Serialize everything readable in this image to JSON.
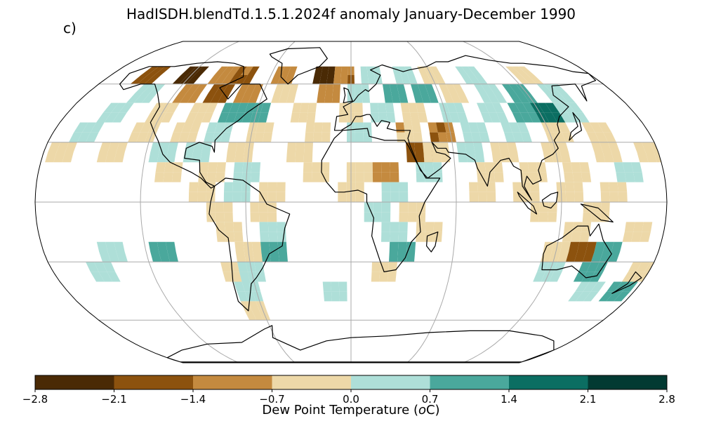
{
  "title": "HadISDH.blendTd.1.5.1.2024f anomaly January-December 1990",
  "panel_label": "c)",
  "colorbar": {
    "label": "Dew Point Temperature (",
    "label_unit_o": "o",
    "label_unit_rest": "C)",
    "ticks": [
      "−2.8",
      "−2.1",
      "−1.4",
      "−0.7",
      "0.0",
      "0.7",
      "1.4",
      "2.1",
      "2.8"
    ],
    "tick_values": [
      -2.8,
      -2.1,
      -1.4,
      -0.7,
      0.0,
      0.7,
      1.4,
      2.1,
      2.8
    ],
    "colors": [
      "#4a2a05",
      "#8c520e",
      "#c48a3f",
      "#edd8a8",
      "#aedfd8",
      "#4aa89c",
      "#0b6e62",
      "#023a32"
    ]
  },
  "chart_data": {
    "type": "heatmap",
    "projection": "Robinson",
    "grid_degrees": 5,
    "value_range": [
      -2.8,
      2.8
    ],
    "cells": [
      {
        "lon": -150,
        "lat": 67.5,
        "v": -1.6
      },
      {
        "lon": -120,
        "lat": 67.5,
        "v": -2.4
      },
      {
        "lon": -95,
        "lat": 67.5,
        "v": -1.2
      },
      {
        "lon": -80,
        "lat": 67.5,
        "v": -1.5
      },
      {
        "lon": -50,
        "lat": 67.5,
        "v": -1.0
      },
      {
        "lon": -20,
        "lat": 67.5,
        "v": -2.2
      },
      {
        "lon": -5,
        "lat": 67.5,
        "v": -1.3
      },
      {
        "lon": 15,
        "lat": 67.5,
        "v": 0.4
      },
      {
        "lon": 40,
        "lat": 67.5,
        "v": 0.3
      },
      {
        "lon": 60,
        "lat": 67.5,
        "v": -0.4
      },
      {
        "lon": 90,
        "lat": 67.5,
        "v": 0.4
      },
      {
        "lon": 130,
        "lat": 67.5,
        "v": -0.3
      },
      {
        "lon": -140,
        "lat": 57.5,
        "v": 0.3
      },
      {
        "lon": -110,
        "lat": 57.5,
        "v": -1.0
      },
      {
        "lon": -90,
        "lat": 57.5,
        "v": -1.8
      },
      {
        "lon": -70,
        "lat": 57.5,
        "v": -1.1
      },
      {
        "lon": -45,
        "lat": 57.5,
        "v": -0.5
      },
      {
        "lon": -15,
        "lat": 57.5,
        "v": -1.0
      },
      {
        "lon": 5,
        "lat": 57.5,
        "v": 0.4
      },
      {
        "lon": 30,
        "lat": 57.5,
        "v": 0.9
      },
      {
        "lon": 50,
        "lat": 57.5,
        "v": 1.0
      },
      {
        "lon": 70,
        "lat": 57.5,
        "v": -0.3
      },
      {
        "lon": 95,
        "lat": 57.5,
        "v": 0.4
      },
      {
        "lon": 115,
        "lat": 57.5,
        "v": 0.8
      },
      {
        "lon": 140,
        "lat": 57.5,
        "v": 0.4
      },
      {
        "lon": -150,
        "lat": 47.5,
        "v": 0.3
      },
      {
        "lon": -120,
        "lat": 47.5,
        "v": -0.4
      },
      {
        "lon": -95,
        "lat": 47.5,
        "v": -0.5
      },
      {
        "lon": -75,
        "lat": 47.5,
        "v": 0.9
      },
      {
        "lon": -60,
        "lat": 47.5,
        "v": 1.2
      },
      {
        "lon": -30,
        "lat": 47.5,
        "v": -0.3
      },
      {
        "lon": 0,
        "lat": 47.5,
        "v": -0.4
      },
      {
        "lon": 20,
        "lat": 47.5,
        "v": 0.4
      },
      {
        "lon": 40,
        "lat": 47.5,
        "v": -0.3
      },
      {
        "lon": 65,
        "lat": 47.5,
        "v": 0.4
      },
      {
        "lon": 90,
        "lat": 47.5,
        "v": 0.4
      },
      {
        "lon": 110,
        "lat": 47.5,
        "v": 1.1
      },
      {
        "lon": 125,
        "lat": 47.5,
        "v": 1.8
      },
      {
        "lon": 140,
        "lat": 47.5,
        "v": 0.4
      },
      {
        "lon": -160,
        "lat": 37.5,
        "v": 0.3
      },
      {
        "lon": -125,
        "lat": 37.5,
        "v": -0.3
      },
      {
        "lon": -100,
        "lat": 37.5,
        "v": -0.5
      },
      {
        "lon": -80,
        "lat": 37.5,
        "v": 0.5
      },
      {
        "lon": -55,
        "lat": 37.5,
        "v": -0.3
      },
      {
        "lon": -20,
        "lat": 37.5,
        "v": -0.3
      },
      {
        "lon": 5,
        "lat": 37.5,
        "v": 0.4
      },
      {
        "lon": 35,
        "lat": 37.5,
        "v": -0.6
      },
      {
        "lon": 55,
        "lat": 37.5,
        "v": -1.4
      },
      {
        "lon": 75,
        "lat": 37.5,
        "v": 0.5
      },
      {
        "lon": 100,
        "lat": 37.5,
        "v": 0.3
      },
      {
        "lon": 125,
        "lat": 37.5,
        "v": -0.3
      },
      {
        "lon": 150,
        "lat": 37.5,
        "v": -0.3
      },
      {
        "lon": -170,
        "lat": 27.5,
        "v": -0.3
      },
      {
        "lon": -140,
        "lat": 27.5,
        "v": -0.3
      },
      {
        "lon": -110,
        "lat": 27.5,
        "v": 0.4
      },
      {
        "lon": -90,
        "lat": 27.5,
        "v": 0.5
      },
      {
        "lon": -65,
        "lat": 27.5,
        "v": -0.3
      },
      {
        "lon": -30,
        "lat": 27.5,
        "v": -0.4
      },
      {
        "lon": 40,
        "lat": 27.5,
        "v": -1.6
      },
      {
        "lon": 50,
        "lat": 27.5,
        "v": -0.5
      },
      {
        "lon": 70,
        "lat": 27.5,
        "v": 0.4
      },
      {
        "lon": 90,
        "lat": 27.5,
        "v": -0.4
      },
      {
        "lon": 120,
        "lat": 27.5,
        "v": -0.3
      },
      {
        "lon": 150,
        "lat": 27.5,
        "v": -0.3
      },
      {
        "lon": 175,
        "lat": 27.5,
        "v": -0.5
      },
      {
        "lon": -105,
        "lat": 17.5,
        "v": -0.3
      },
      {
        "lon": -80,
        "lat": 17.5,
        "v": -0.3
      },
      {
        "lon": -60,
        "lat": 17.5,
        "v": 0.4
      },
      {
        "lon": -20,
        "lat": 17.5,
        "v": -0.3
      },
      {
        "lon": 5,
        "lat": 17.5,
        "v": -0.5
      },
      {
        "lon": 20,
        "lat": 17.5,
        "v": -1.2
      },
      {
        "lon": 45,
        "lat": 17.5,
        "v": 0.5
      },
      {
        "lon": 80,
        "lat": 17.5,
        "v": -0.3
      },
      {
        "lon": 105,
        "lat": 17.5,
        "v": -0.4
      },
      {
        "lon": 130,
        "lat": 17.5,
        "v": -0.3
      },
      {
        "lon": 160,
        "lat": 17.5,
        "v": 0.3
      },
      {
        "lon": -85,
        "lat": 7.5,
        "v": -0.3
      },
      {
        "lon": -65,
        "lat": 7.5,
        "v": 0.4
      },
      {
        "lon": -45,
        "lat": 7.5,
        "v": -0.3
      },
      {
        "lon": 0,
        "lat": 7.5,
        "v": -0.4
      },
      {
        "lon": 25,
        "lat": 7.5,
        "v": 0.3
      },
      {
        "lon": 75,
        "lat": 7.5,
        "v": -0.3
      },
      {
        "lon": 100,
        "lat": 7.5,
        "v": -0.3
      },
      {
        "lon": 125,
        "lat": 7.5,
        "v": -0.5
      },
      {
        "lon": 150,
        "lat": 7.5,
        "v": -0.3
      },
      {
        "lon": -75,
        "lat": -2.5,
        "v": -0.3
      },
      {
        "lon": -50,
        "lat": -2.5,
        "v": -0.4
      },
      {
        "lon": 15,
        "lat": -2.5,
        "v": 0.3
      },
      {
        "lon": 35,
        "lat": -2.5,
        "v": -0.3
      },
      {
        "lon": 110,
        "lat": -2.5,
        "v": -0.3
      },
      {
        "lon": 140,
        "lat": -2.5,
        "v": -0.4
      },
      {
        "lon": -70,
        "lat": -12.5,
        "v": -0.5
      },
      {
        "lon": -45,
        "lat": -12.5,
        "v": 0.4
      },
      {
        "lon": 25,
        "lat": -12.5,
        "v": 0.5
      },
      {
        "lon": 45,
        "lat": -12.5,
        "v": -0.3
      },
      {
        "lon": 130,
        "lat": -12.5,
        "v": -0.3
      },
      {
        "lon": 165,
        "lat": -12.5,
        "v": -0.3
      },
      {
        "lon": -140,
        "lat": -22.5,
        "v": 0.4
      },
      {
        "lon": -110,
        "lat": -22.5,
        "v": 1.1
      },
      {
        "lon": -60,
        "lat": -22.5,
        "v": -0.4
      },
      {
        "lon": -45,
        "lat": -22.5,
        "v": 1.0
      },
      {
        "lon": 30,
        "lat": -22.5,
        "v": 1.2
      },
      {
        "lon": 120,
        "lat": -22.5,
        "v": -0.3
      },
      {
        "lon": 135,
        "lat": -22.5,
        "v": -1.5
      },
      {
        "lon": 150,
        "lat": -22.5,
        "v": 0.9
      },
      {
        "lon": -150,
        "lat": -32.5,
        "v": 0.3
      },
      {
        "lon": -70,
        "lat": -32.5,
        "v": -0.5
      },
      {
        "lon": -60,
        "lat": -32.5,
        "v": 0.3
      },
      {
        "lon": 20,
        "lat": -32.5,
        "v": -0.3
      },
      {
        "lon": 120,
        "lat": -32.5,
        "v": 0.4
      },
      {
        "lon": 145,
        "lat": -32.5,
        "v": 0.8
      },
      {
        "lon": 175,
        "lat": -32.5,
        "v": -0.3
      },
      {
        "lon": -65,
        "lat": -42.5,
        "v": 0.4
      },
      {
        "lon": -10,
        "lat": -42.5,
        "v": 0.3
      },
      {
        "lon": 150,
        "lat": -42.5,
        "v": 0.4
      },
      {
        "lon": 170,
        "lat": -42.5,
        "v": 1.0
      },
      {
        "lon": -65,
        "lat": -52.5,
        "v": -0.4
      }
    ]
  }
}
